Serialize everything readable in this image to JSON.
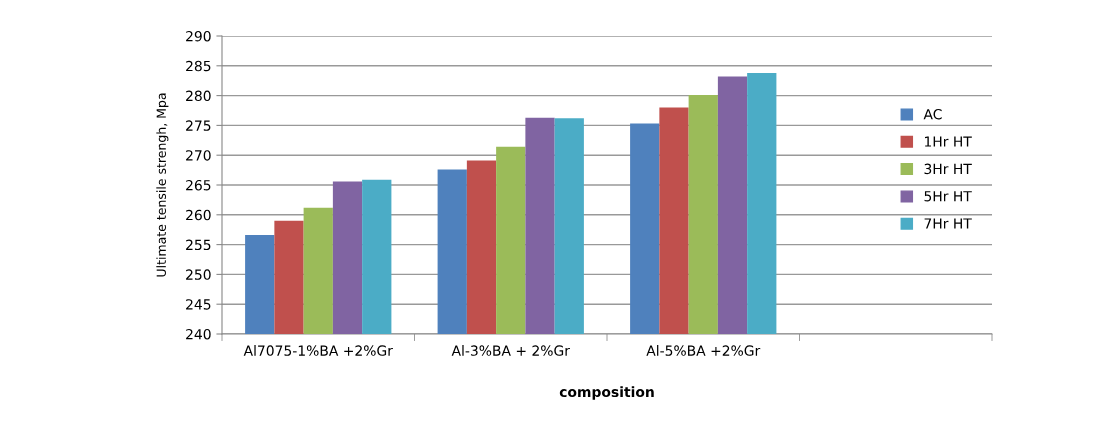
{
  "chart_data": {
    "type": "bar",
    "xlabel": "composition",
    "ylabel": "Ultimate tensile strengh, Mpa",
    "categories": [
      "Al7075-1%BA +2%Gr",
      "Al-3%BA + 2%Gr",
      "Al-5%BA +2%Gr",
      null
    ],
    "series": [
      {
        "name": "AC",
        "color": "#4f81bd",
        "values": [
          256.6,
          267.6,
          275.3,
          null
        ]
      },
      {
        "name": "1Hr HT",
        "color": "#c0504d",
        "values": [
          259.0,
          269.1,
          278.0,
          null
        ]
      },
      {
        "name": "3Hr HT",
        "color": "#9bbb59",
        "values": [
          261.2,
          271.4,
          280.1,
          null
        ]
      },
      {
        "name": "5Hr HT",
        "color": "#8064a2",
        "values": [
          265.6,
          276.3,
          283.2,
          null
        ]
      },
      {
        "name": "7Hr HT",
        "color": "#4bacc6",
        "values": [
          265.9,
          276.2,
          283.8,
          null
        ]
      }
    ],
    "ylim": [
      240,
      290
    ],
    "yticks": [
      240,
      245,
      250,
      255,
      260,
      265,
      270,
      275,
      280,
      285,
      290
    ],
    "grid": "y",
    "legend": "right"
  }
}
